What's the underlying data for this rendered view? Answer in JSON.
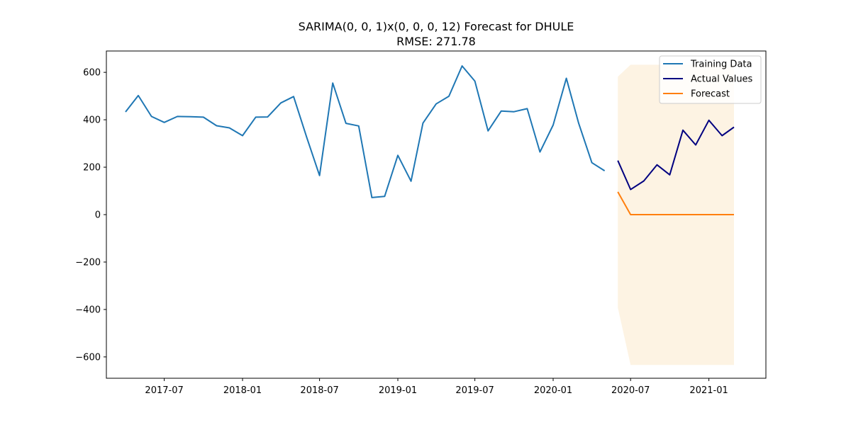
{
  "chart_data": {
    "type": "line",
    "title": "SARIMA(0, 0, 1)x(0, 0, 0, 12) Forecast for DHULE",
    "subtitle": "RMSE: 271.78",
    "xlabel": "",
    "ylabel": "",
    "ylim": [
      -690,
      690
    ],
    "xlim": [
      "2017-02-15",
      "2021-05-15"
    ],
    "yticks": [
      600,
      400,
      200,
      0,
      -200,
      -400,
      -600
    ],
    "ytick_labels": [
      "600",
      "400",
      "200",
      "0",
      "−200",
      "−400",
      "−600"
    ],
    "xticks": [
      "2017-07-01",
      "2018-01-01",
      "2018-07-01",
      "2019-01-01",
      "2019-07-01",
      "2020-01-01",
      "2020-07-01",
      "2021-01-01"
    ],
    "xtick_labels": [
      "2017-07",
      "2018-01",
      "2018-07",
      "2019-01",
      "2019-07",
      "2020-01",
      "2020-07",
      "2021-01"
    ],
    "grid": false,
    "legend_position": "top-right",
    "series": [
      {
        "name": "Training Data",
        "color": "#1f77b4",
        "x": [
          "2017-04-01",
          "2017-05-01",
          "2017-06-01",
          "2017-07-01",
          "2017-08-01",
          "2017-09-01",
          "2017-10-01",
          "2017-11-01",
          "2017-12-01",
          "2018-01-01",
          "2018-02-01",
          "2018-03-01",
          "2018-04-01",
          "2018-05-01",
          "2018-06-01",
          "2018-07-01",
          "2018-08-01",
          "2018-09-01",
          "2018-10-01",
          "2018-11-01",
          "2018-12-01",
          "2019-01-01",
          "2019-02-01",
          "2019-03-01",
          "2019-04-01",
          "2019-05-01",
          "2019-06-01",
          "2019-07-01",
          "2019-08-01",
          "2019-09-01",
          "2019-10-01",
          "2019-11-01",
          "2019-12-01",
          "2020-01-01",
          "2020-02-01",
          "2020-03-01",
          "2020-04-01",
          "2020-05-01"
        ],
        "values": [
          433,
          502,
          414,
          389,
          414,
          413,
          411,
          375,
          366,
          333,
          411,
          412,
          471,
          498,
          325,
          165,
          555,
          385,
          374,
          72,
          77,
          250,
          141,
          386,
          467,
          499,
          627,
          563,
          353,
          437,
          434,
          447,
          264,
          378,
          575,
          385,
          219,
          185
        ]
      },
      {
        "name": "Actual Values",
        "color": "#000080",
        "x": [
          "2020-06-01",
          "2020-07-01",
          "2020-08-01",
          "2020-09-01",
          "2020-10-01",
          "2020-11-01",
          "2020-12-01",
          "2021-01-01",
          "2021-02-01",
          "2021-03-01"
        ],
        "values": [
          228,
          106,
          142,
          210,
          168,
          356,
          294,
          398,
          333,
          369
        ]
      },
      {
        "name": "Forecast",
        "color": "#ff7f0e",
        "x": [
          "2020-06-01",
          "2020-07-01",
          "2020-08-01",
          "2020-09-01",
          "2020-10-01",
          "2020-11-01",
          "2020-12-01",
          "2021-01-01",
          "2021-02-01",
          "2021-03-01"
        ],
        "values": [
          96,
          0,
          0,
          0,
          0,
          0,
          0,
          0,
          0,
          0
        ]
      }
    ],
    "confidence_interval": {
      "color": "#fdf3e3",
      "x": [
        "2020-06-01",
        "2020-07-01",
        "2020-08-01",
        "2020-09-01",
        "2020-10-01",
        "2020-11-01",
        "2020-12-01",
        "2021-01-01",
        "2021-02-01",
        "2021-03-01"
      ],
      "upper": [
        582,
        632,
        632,
        632,
        632,
        632,
        632,
        632,
        632,
        632
      ],
      "lower": [
        -392,
        -634,
        -634,
        -634,
        -634,
        -634,
        -634,
        -634,
        -634,
        -634
      ]
    }
  }
}
